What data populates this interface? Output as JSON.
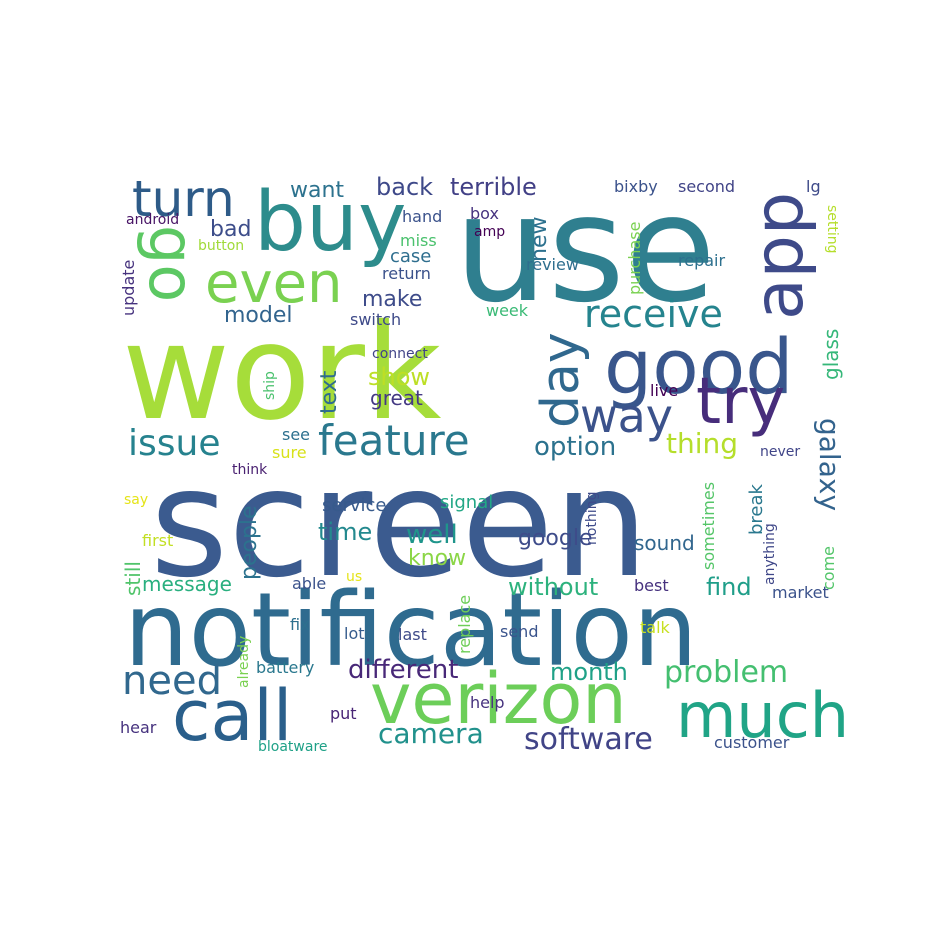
{
  "words": [
    {
      "text": "screen",
      "color": "#3b5b8f"
    },
    {
      "text": "work",
      "color": "#a6dd3a"
    },
    {
      "text": "use",
      "color": "#2f7f8f"
    },
    {
      "text": "notification",
      "color": "#2f6b8f"
    },
    {
      "text": "buy",
      "color": "#2d8c8c"
    },
    {
      "text": "verizon",
      "color": "#6cce59"
    },
    {
      "text": "call",
      "color": "#2a5f8b"
    },
    {
      "text": "much",
      "color": "#20a486"
    },
    {
      "text": "good",
      "color": "#39568c"
    },
    {
      "text": "app",
      "color": "#3e4a89"
    },
    {
      "text": "try",
      "color": "#472d7b"
    },
    {
      "text": "day",
      "color": "#30688e"
    },
    {
      "text": "go",
      "color": "#5cc863"
    },
    {
      "text": "even",
      "color": "#7ad151"
    },
    {
      "text": "turn",
      "color": "#2e5b88"
    },
    {
      "text": "way",
      "color": "#3b528b"
    },
    {
      "text": "feature",
      "color": "#2a788e"
    },
    {
      "text": "issue",
      "color": "#26828e"
    },
    {
      "text": "receive",
      "color": "#25848e"
    },
    {
      "text": "need",
      "color": "#31688e"
    },
    {
      "text": "problem",
      "color": "#44bf70"
    },
    {
      "text": "software",
      "color": "#414487"
    },
    {
      "text": "camera",
      "color": "#21918c"
    },
    {
      "text": "option",
      "color": "#2c728e"
    },
    {
      "text": "thing",
      "color": "#b5de2b"
    },
    {
      "text": "galaxy",
      "color": "#33638d"
    },
    {
      "text": "different",
      "color": "#482878"
    },
    {
      "text": "month",
      "color": "#1fa187"
    },
    {
      "text": "without",
      "color": "#2db27d"
    },
    {
      "text": "find",
      "color": "#1f9e89"
    },
    {
      "text": "back",
      "color": "#3e4989"
    },
    {
      "text": "terrible",
      "color": "#424086"
    },
    {
      "text": "want",
      "color": "#2c728e"
    },
    {
      "text": "make",
      "color": "#3e4c8a"
    },
    {
      "text": "model",
      "color": "#32648e"
    },
    {
      "text": "bad",
      "color": "#3d4d8a"
    },
    {
      "text": "new",
      "color": "#2d718e"
    },
    {
      "text": "text",
      "color": "#2f6c8e"
    },
    {
      "text": "show",
      "color": "#bddf26"
    },
    {
      "text": "great",
      "color": "#443983"
    },
    {
      "text": "glass",
      "color": "#35b779"
    },
    {
      "text": "time",
      "color": "#23898e"
    },
    {
      "text": "well",
      "color": "#1f958b"
    },
    {
      "text": "know",
      "color": "#8bd646"
    },
    {
      "text": "people",
      "color": "#2c728e"
    },
    {
      "text": "google",
      "color": "#3e4c8a"
    },
    {
      "text": "sound",
      "color": "#31668e"
    },
    {
      "text": "message",
      "color": "#29af7f"
    },
    {
      "text": "still",
      "color": "#50c46a"
    },
    {
      "text": "break",
      "color": "#2a788e"
    },
    {
      "text": "come",
      "color": "#52c569"
    },
    {
      "text": "sometimes",
      "color": "#54c568"
    },
    {
      "text": "anything",
      "color": "#3f4788"
    },
    {
      "text": "bixby",
      "color": "#3b528b"
    },
    {
      "text": "second",
      "color": "#414487"
    },
    {
      "text": "lg",
      "color": "#3e4a89"
    },
    {
      "text": "setting",
      "color": "#b5de2b"
    },
    {
      "text": "hand",
      "color": "#3b528b"
    },
    {
      "text": "box",
      "color": "#46337f"
    },
    {
      "text": "amp",
      "color": "#440154"
    },
    {
      "text": "miss",
      "color": "#4ac16d"
    },
    {
      "text": "case",
      "color": "#2e6e8e"
    },
    {
      "text": "return",
      "color": "#3b528b"
    },
    {
      "text": "review",
      "color": "#2e6e8e"
    },
    {
      "text": "purchase",
      "color": "#7ad151"
    },
    {
      "text": "repair",
      "color": "#2d708e"
    },
    {
      "text": "week",
      "color": "#3aba76"
    },
    {
      "text": "switch",
      "color": "#3e4a89"
    },
    {
      "text": "connect",
      "color": "#414487"
    },
    {
      "text": "ship",
      "color": "#4ac16d"
    },
    {
      "text": "live",
      "color": "#440154"
    },
    {
      "text": "android",
      "color": "#471365"
    },
    {
      "text": "button",
      "color": "#a0da39"
    },
    {
      "text": "update",
      "color": "#46327e"
    },
    {
      "text": "see",
      "color": "#2d708e"
    },
    {
      "text": "sure",
      "color": "#d8e219"
    },
    {
      "text": "think",
      "color": "#481f70"
    },
    {
      "text": "say",
      "color": "#e5e419"
    },
    {
      "text": "first",
      "color": "#c2df23"
    },
    {
      "text": "service",
      "color": "#375a8c"
    },
    {
      "text": "signal",
      "color": "#22a785"
    },
    {
      "text": "nothing",
      "color": "#3e4a89"
    },
    {
      "text": "never",
      "color": "#404588"
    },
    {
      "text": "able",
      "color": "#3b528b"
    },
    {
      "text": "us",
      "color": "#e5e419"
    },
    {
      "text": "best",
      "color": "#46317e"
    },
    {
      "text": "market",
      "color": "#3b528b"
    },
    {
      "text": "fix",
      "color": "#2d708e"
    },
    {
      "text": "lot",
      "color": "#365c8d"
    },
    {
      "text": "last",
      "color": "#3e4a89"
    },
    {
      "text": "replace",
      "color": "#6ece58"
    },
    {
      "text": "send",
      "color": "#3a548c"
    },
    {
      "text": "talk",
      "color": "#c8e020"
    },
    {
      "text": "already",
      "color": "#7ad151"
    },
    {
      "text": "battery",
      "color": "#2a788e"
    },
    {
      "text": "put",
      "color": "#482475"
    },
    {
      "text": "help",
      "color": "#46327e"
    },
    {
      "text": "hear",
      "color": "#46327e"
    },
    {
      "text": "bloatware",
      "color": "#1fa187"
    },
    {
      "text": "customer",
      "color": "#3b528b"
    }
  ]
}
